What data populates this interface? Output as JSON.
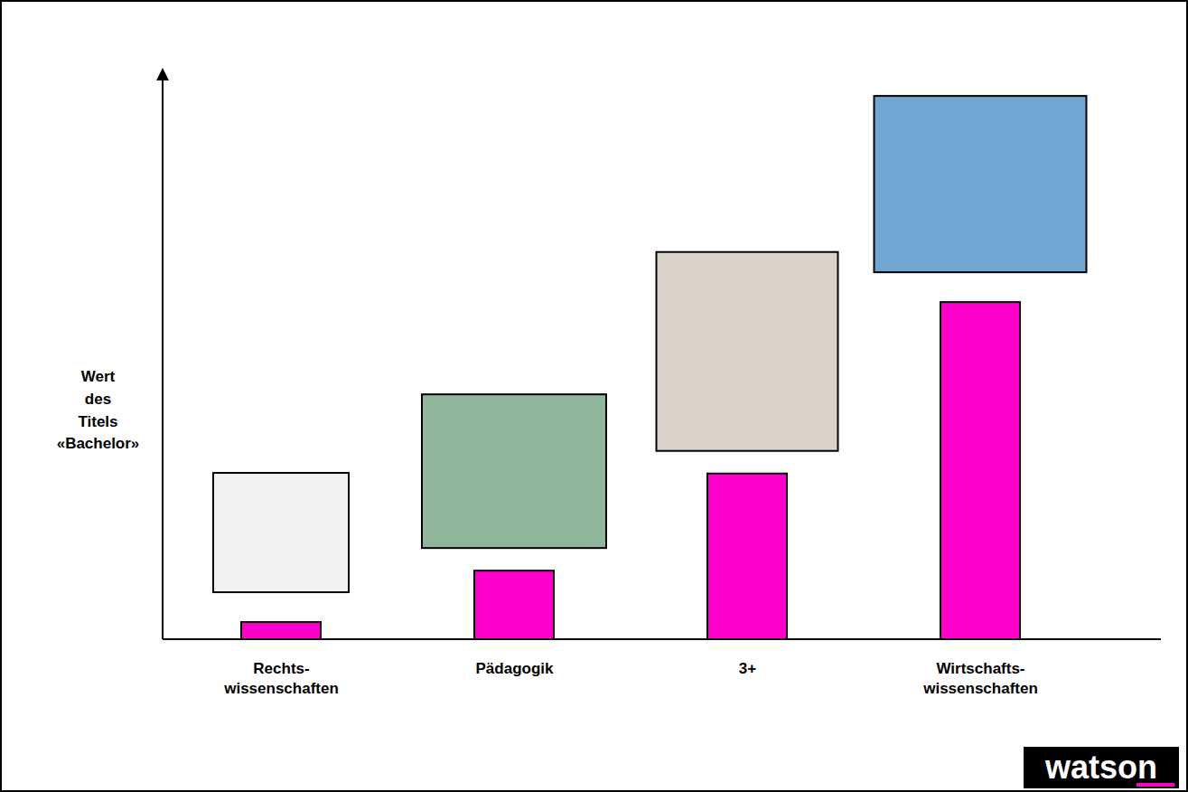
{
  "chart_data": {
    "type": "bar",
    "ylabel": "Wert\ndes\nTitels\n«Bachelor»",
    "categories": [
      "Rechts-\nwissenschaften",
      "Pädagogik",
      "3+",
      "Wirtschafts-\nwissenschaften"
    ],
    "values": [
      3,
      12,
      29,
      59
    ],
    "color": "#ff00cc",
    "ylim": [
      0,
      100
    ],
    "yticks": [],
    "grid": false,
    "tick_labels": "x",
    "logo": "watson"
  }
}
